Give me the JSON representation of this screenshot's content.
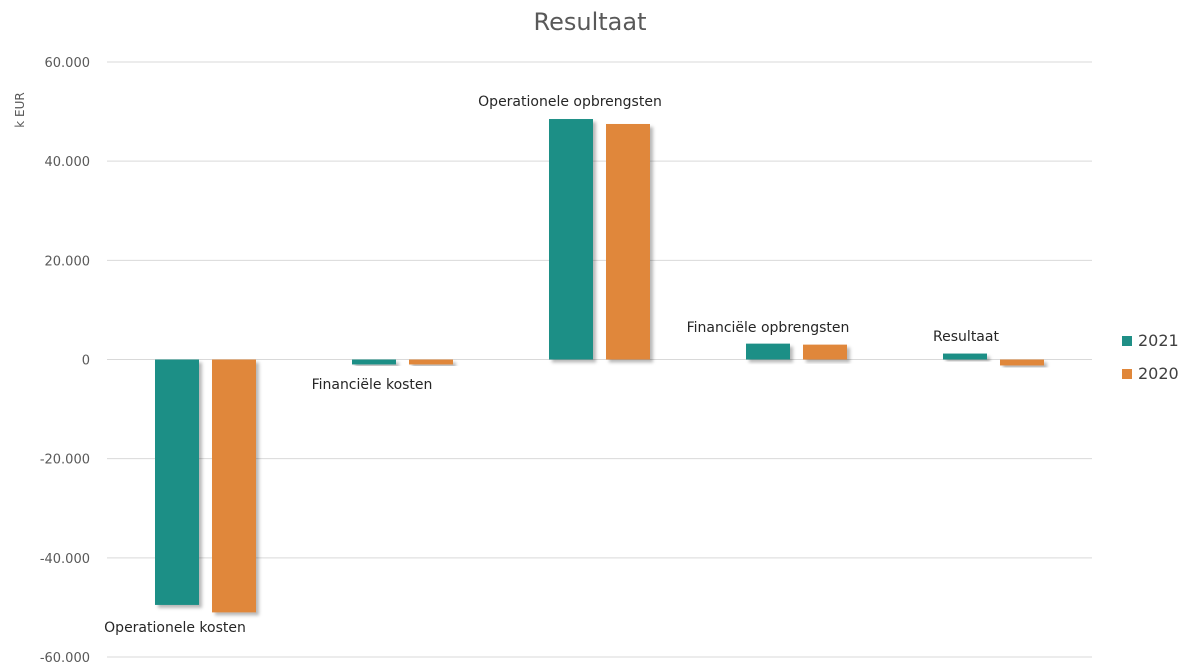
{
  "chart_data": {
    "type": "bar",
    "title": "Resultaat",
    "ylabel": "k EUR",
    "xlabel": "",
    "ylim": [
      -60000,
      60000
    ],
    "yticks": [
      60000,
      40000,
      20000,
      0,
      -20000,
      -40000,
      -60000
    ],
    "ytick_labels": [
      "60.000",
      "40.000",
      "20.000",
      "0",
      "-20.000",
      "-40.000",
      "-60.000"
    ],
    "grid": true,
    "legend_position": "right",
    "categories": [
      "Operationele kosten",
      "Financiële kosten",
      "Operationele opbrengsten",
      "Financiële opbrengsten",
      "Resultaat"
    ],
    "series": [
      {
        "name": "2021",
        "color": "#1f8f86",
        "values": [
          -49500,
          -1000,
          48500,
          3200,
          1200
        ]
      },
      {
        "name": "2020",
        "color": "#e0873a",
        "values": [
          -51000,
          -1000,
          47500,
          3000,
          -1200
        ]
      }
    ]
  }
}
